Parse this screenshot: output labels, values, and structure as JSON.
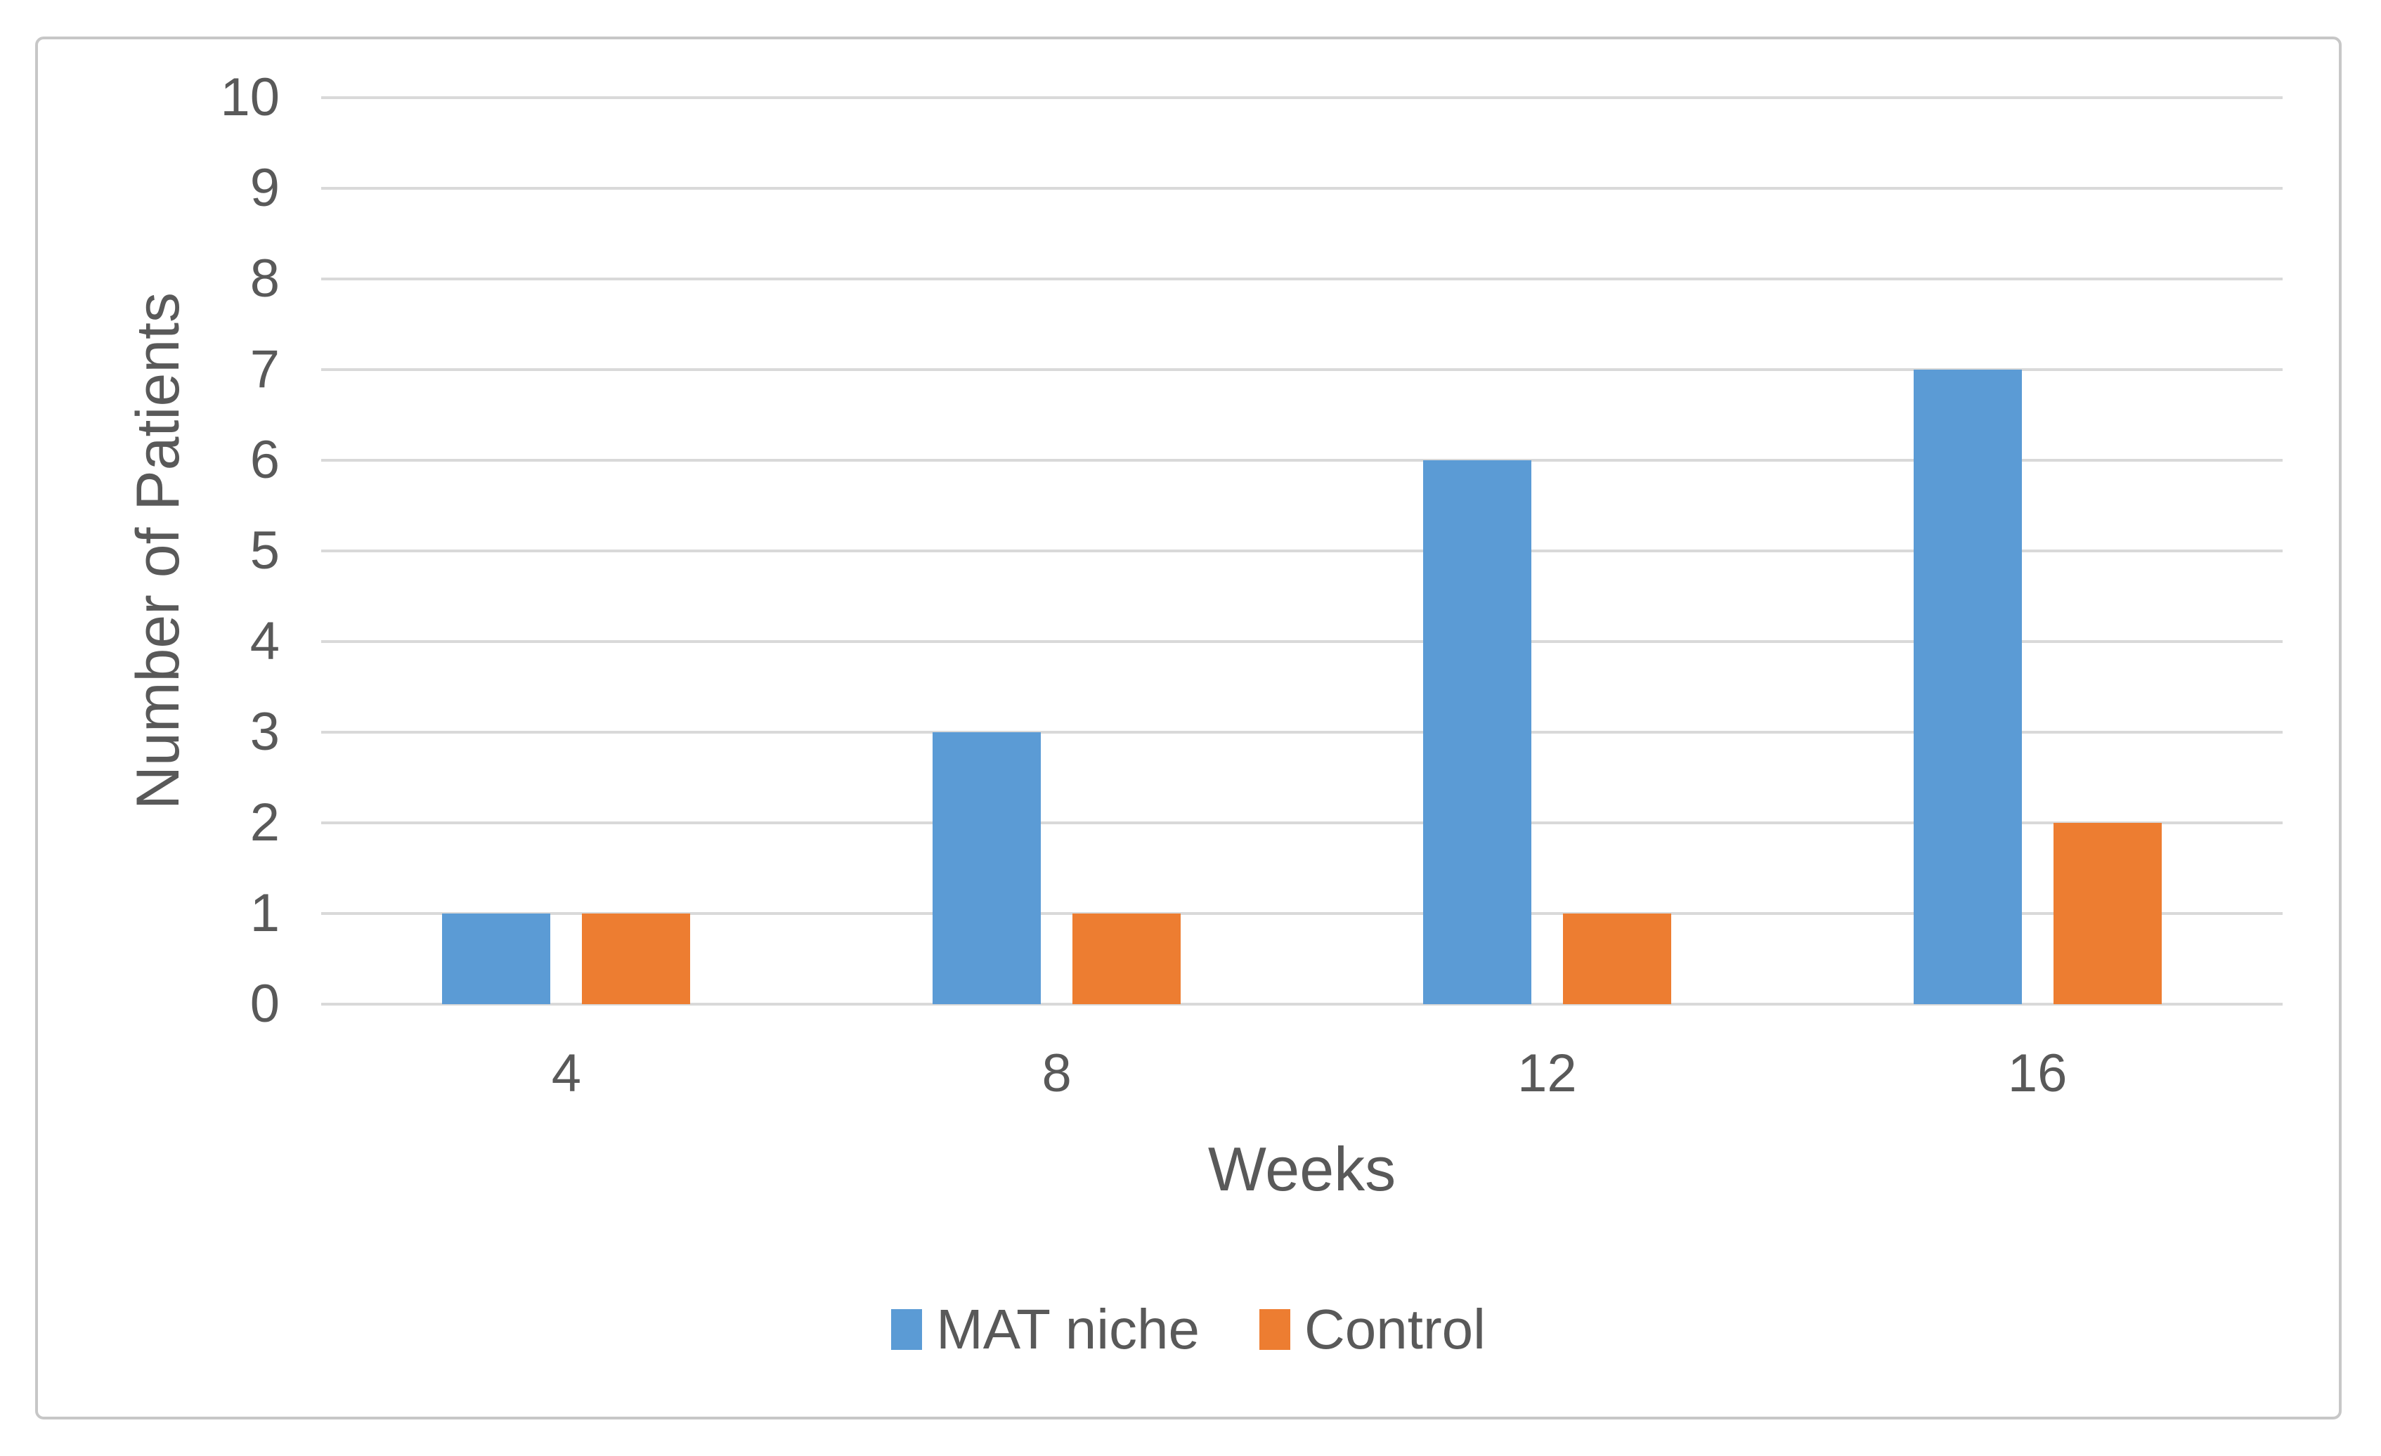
{
  "chart_data": {
    "type": "bar",
    "title": "",
    "categories": [
      "4",
      "8",
      "12",
      "16"
    ],
    "series": [
      {
        "name": "MAT niche",
        "color": "#5B9BD5",
        "values": [
          1,
          3,
          6,
          7
        ]
      },
      {
        "name": "Control",
        "color": "#ED7D31",
        "values": [
          1,
          1,
          1,
          2
        ]
      }
    ],
    "xlabel": "Weeks",
    "ylabel": "Number of Patients",
    "ylim": [
      0,
      10
    ],
    "ytick_step": 1,
    "yticks": [
      "0",
      "1",
      "2",
      "3",
      "4",
      "5",
      "6",
      "7",
      "8",
      "9",
      "10"
    ],
    "grid": "horizontal",
    "legend_position": "bottom",
    "colors": {
      "grid_line": "#D9D9D9",
      "axis_text": "#595959",
      "frame_border": "#C7C7C7",
      "background": "#FFFFFF"
    }
  }
}
